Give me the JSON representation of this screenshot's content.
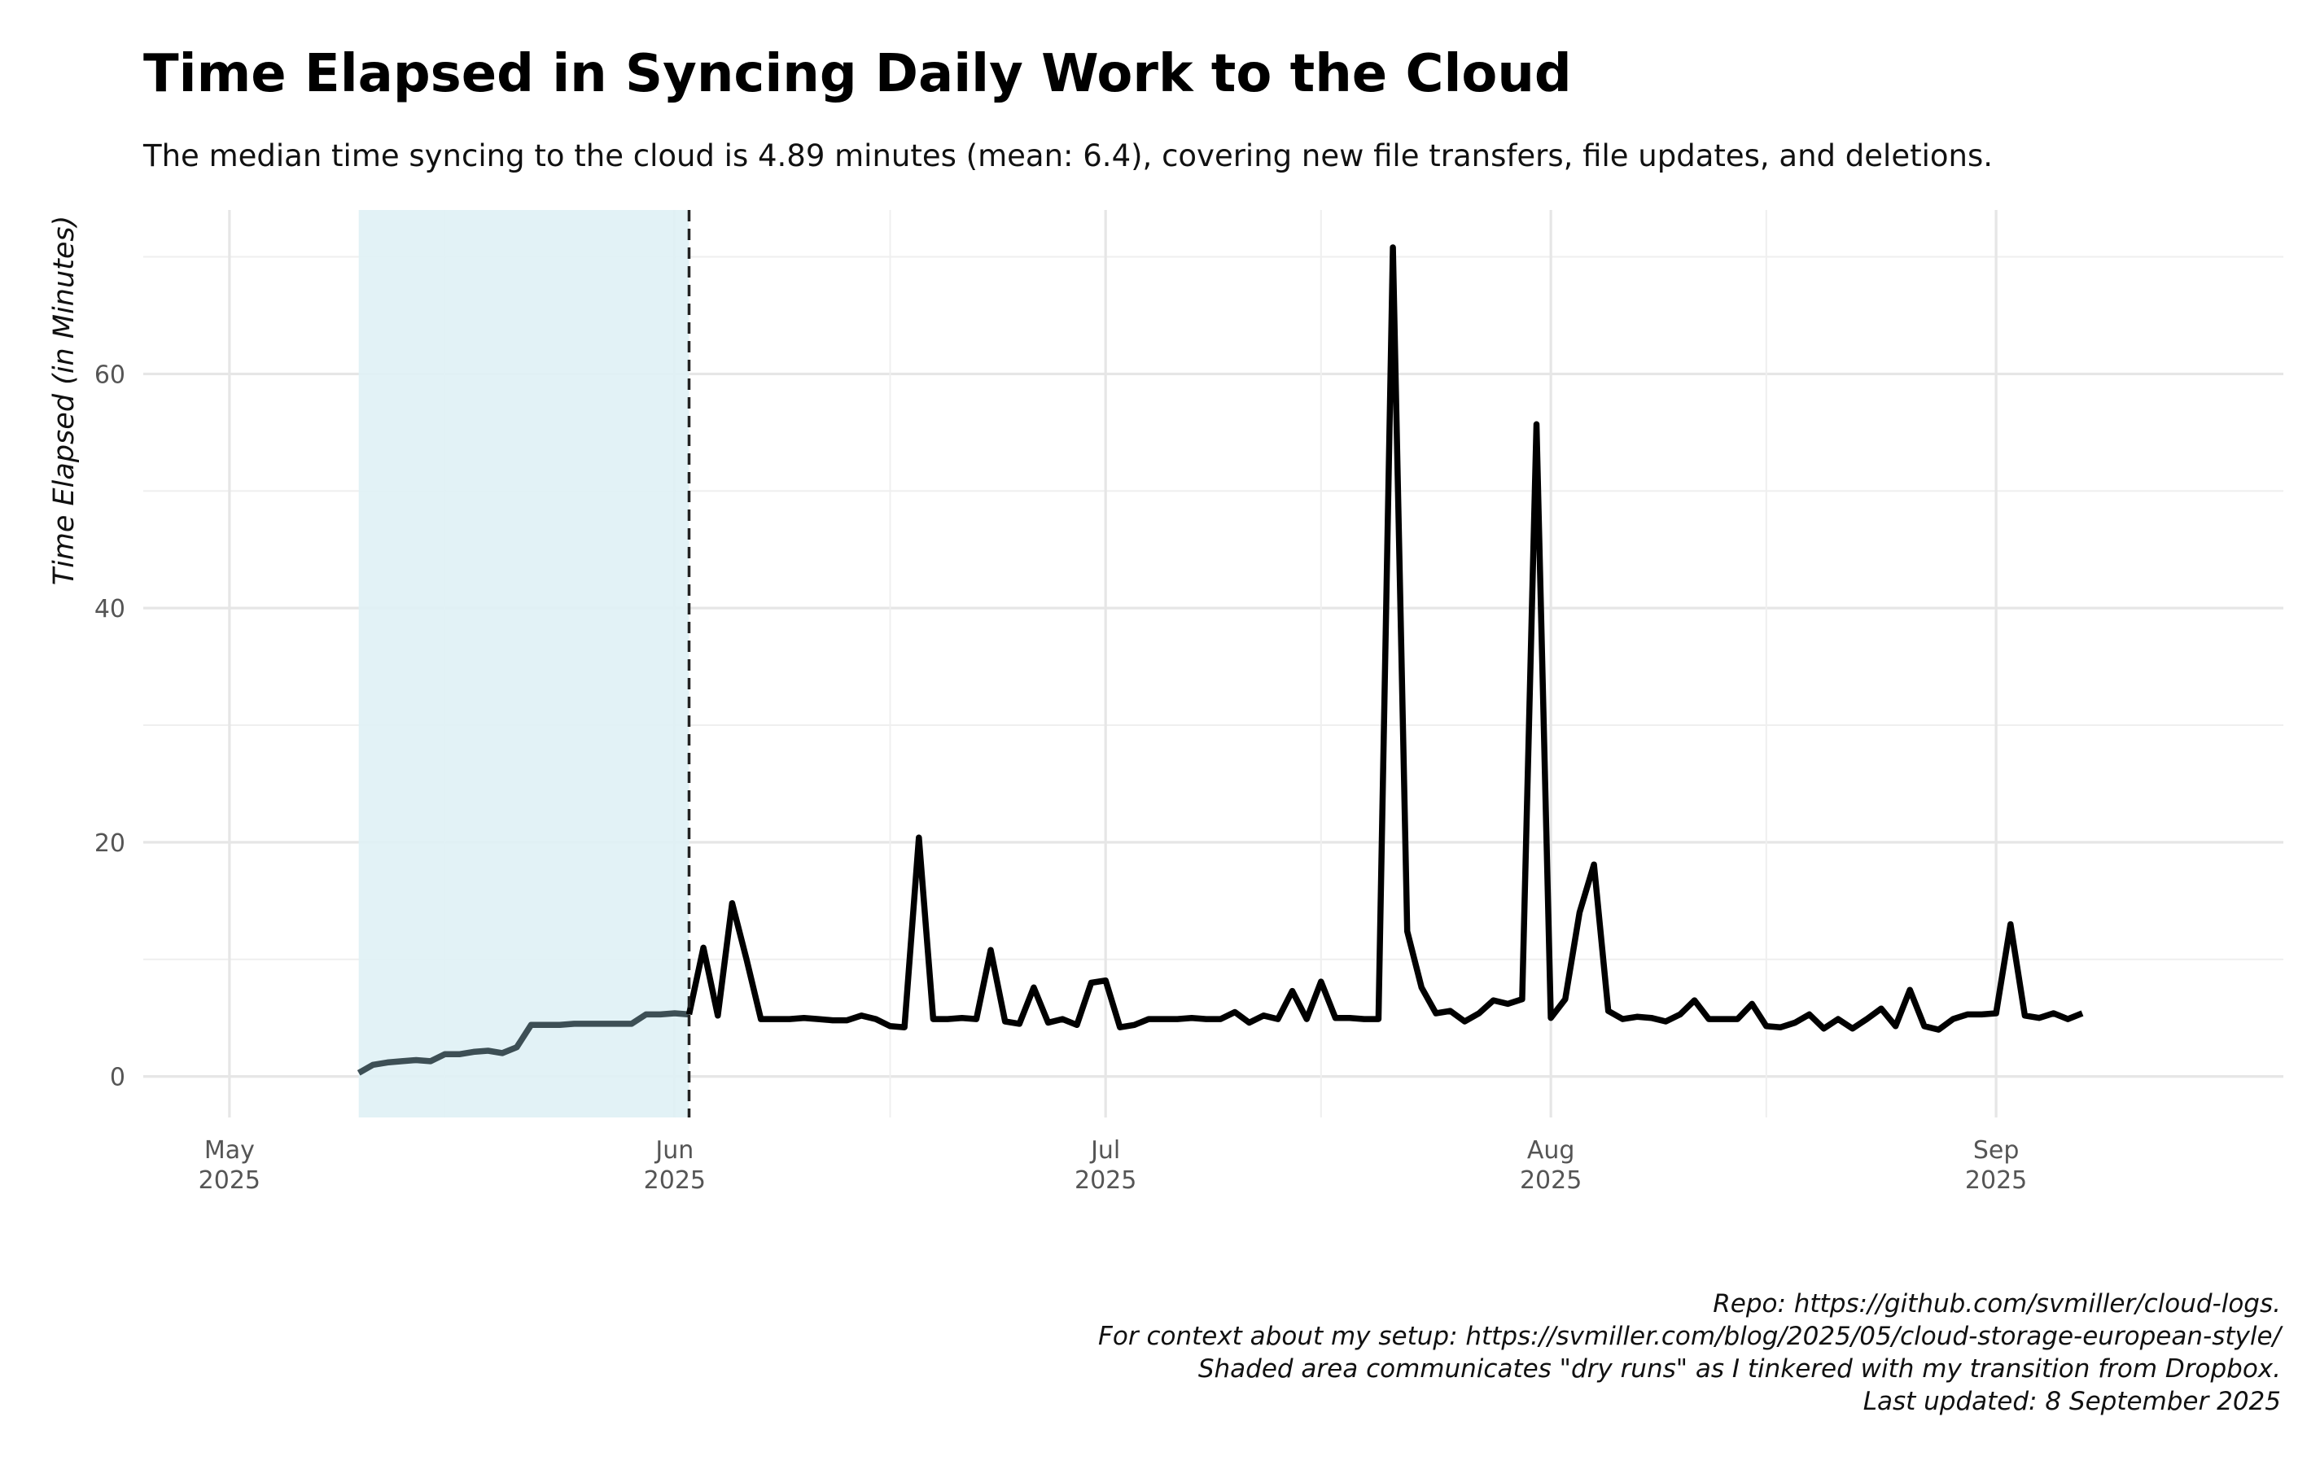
{
  "chart_data": {
    "type": "line",
    "title": "Time Elapsed in Syncing Daily Work to the Cloud",
    "subtitle": "The median time syncing to the cloud is 4.89 minutes (mean: 6.4), covering new file transfers, file updates, and deletions.",
    "xlabel": "",
    "ylabel": "Time Elapsed (in Minutes)",
    "xlim": [
      "2025-04-25",
      "2025-09-21"
    ],
    "ylim": [
      -3.5,
      74
    ],
    "y_ticks": [
      0,
      20,
      40,
      60
    ],
    "x_ticks": [
      {
        "date": "2025-05-01",
        "month": "May",
        "year": "2025"
      },
      {
        "date": "2025-06-01",
        "month": "Jun",
        "year": "2025"
      },
      {
        "date": "2025-07-01",
        "month": "Jul",
        "year": "2025"
      },
      {
        "date": "2025-08-01",
        "month": "Aug",
        "year": "2025"
      },
      {
        "date": "2025-09-01",
        "month": "Sep",
        "year": "2025"
      }
    ],
    "x_minor_ticks": [
      "2025-05-16",
      "2025-06-16",
      "2025-07-16",
      "2025-08-16"
    ],
    "grid": true,
    "shaded_region": {
      "start": "2025-05-10",
      "end": "2025-06-02",
      "color": "#dff1f5"
    },
    "vline": {
      "date": "2025-06-02"
    },
    "colors": {
      "dry_run_line": "#3d4f55",
      "main_line": "#000000"
    },
    "series": [
      {
        "values": [
          {
            "x": "2025-05-10",
            "y": 0.3
          },
          {
            "x": "2025-05-11",
            "y": 1.0
          },
          {
            "x": "2025-05-12",
            "y": 1.2
          },
          {
            "x": "2025-05-13",
            "y": 1.3
          },
          {
            "x": "2025-05-14",
            "y": 1.4
          },
          {
            "x": "2025-05-15",
            "y": 1.3
          },
          {
            "x": "2025-05-16",
            "y": 1.9
          },
          {
            "x": "2025-05-17",
            "y": 1.9
          },
          {
            "x": "2025-05-18",
            "y": 2.1
          },
          {
            "x": "2025-05-19",
            "y": 2.2
          },
          {
            "x": "2025-05-20",
            "y": 2.0
          },
          {
            "x": "2025-05-21",
            "y": 2.5
          },
          {
            "x": "2025-05-22",
            "y": 4.4
          },
          {
            "x": "2025-05-23",
            "y": 4.4
          },
          {
            "x": "2025-05-24",
            "y": 4.4
          },
          {
            "x": "2025-05-25",
            "y": 4.5
          },
          {
            "x": "2025-05-26",
            "y": 4.5
          },
          {
            "x": "2025-05-27",
            "y": 4.5
          },
          {
            "x": "2025-05-28",
            "y": 4.5
          },
          {
            "x": "2025-05-29",
            "y": 4.5
          },
          {
            "x": "2025-05-30",
            "y": 5.3
          },
          {
            "x": "2025-05-31",
            "y": 5.3
          },
          {
            "x": "2025-06-01",
            "y": 5.4
          },
          {
            "x": "2025-06-02",
            "y": 5.3
          }
        ]
      },
      {
        "values": [
          {
            "x": "2025-06-02",
            "y": 5.3
          },
          {
            "x": "2025-06-03",
            "y": 11.0
          },
          {
            "x": "2025-06-04",
            "y": 5.2
          },
          {
            "x": "2025-06-05",
            "y": 14.8
          },
          {
            "x": "2025-06-06",
            "y": 10.0
          },
          {
            "x": "2025-06-07",
            "y": 4.9
          },
          {
            "x": "2025-06-08",
            "y": 4.9
          },
          {
            "x": "2025-06-09",
            "y": 4.9
          },
          {
            "x": "2025-06-10",
            "y": 5.0
          },
          {
            "x": "2025-06-11",
            "y": 4.9
          },
          {
            "x": "2025-06-12",
            "y": 4.8
          },
          {
            "x": "2025-06-13",
            "y": 4.8
          },
          {
            "x": "2025-06-14",
            "y": 5.2
          },
          {
            "x": "2025-06-15",
            "y": 4.9
          },
          {
            "x": "2025-06-16",
            "y": 4.3
          },
          {
            "x": "2025-06-17",
            "y": 4.2
          },
          {
            "x": "2025-06-18",
            "y": 20.4
          },
          {
            "x": "2025-06-19",
            "y": 4.9
          },
          {
            "x": "2025-06-20",
            "y": 4.9
          },
          {
            "x": "2025-06-21",
            "y": 5.0
          },
          {
            "x": "2025-06-22",
            "y": 4.9
          },
          {
            "x": "2025-06-23",
            "y": 10.8
          },
          {
            "x": "2025-06-24",
            "y": 4.7
          },
          {
            "x": "2025-06-25",
            "y": 4.5
          },
          {
            "x": "2025-06-26",
            "y": 7.6
          },
          {
            "x": "2025-06-27",
            "y": 4.6
          },
          {
            "x": "2025-06-28",
            "y": 4.9
          },
          {
            "x": "2025-06-29",
            "y": 4.4
          },
          {
            "x": "2025-06-30",
            "y": 8.0
          },
          {
            "x": "2025-07-01",
            "y": 8.2
          },
          {
            "x": "2025-07-02",
            "y": 4.2
          },
          {
            "x": "2025-07-03",
            "y": 4.4
          },
          {
            "x": "2025-07-04",
            "y": 4.9
          },
          {
            "x": "2025-07-05",
            "y": 4.9
          },
          {
            "x": "2025-07-06",
            "y": 4.9
          },
          {
            "x": "2025-07-07",
            "y": 5.0
          },
          {
            "x": "2025-07-08",
            "y": 4.9
          },
          {
            "x": "2025-07-09",
            "y": 4.9
          },
          {
            "x": "2025-07-10",
            "y": 5.5
          },
          {
            "x": "2025-07-11",
            "y": 4.6
          },
          {
            "x": "2025-07-12",
            "y": 5.2
          },
          {
            "x": "2025-07-13",
            "y": 4.9
          },
          {
            "x": "2025-07-14",
            "y": 7.3
          },
          {
            "x": "2025-07-15",
            "y": 4.9
          },
          {
            "x": "2025-07-16",
            "y": 8.1
          },
          {
            "x": "2025-07-17",
            "y": 5.0
          },
          {
            "x": "2025-07-18",
            "y": 5.0
          },
          {
            "x": "2025-07-19",
            "y": 4.9
          },
          {
            "x": "2025-07-20",
            "y": 4.9
          },
          {
            "x": "2025-07-21",
            "y": 70.8
          },
          {
            "x": "2025-07-22",
            "y": 12.4
          },
          {
            "x": "2025-07-23",
            "y": 7.6
          },
          {
            "x": "2025-07-24",
            "y": 5.4
          },
          {
            "x": "2025-07-25",
            "y": 5.6
          },
          {
            "x": "2025-07-26",
            "y": 4.7
          },
          {
            "x": "2025-07-27",
            "y": 5.4
          },
          {
            "x": "2025-07-28",
            "y": 6.5
          },
          {
            "x": "2025-07-29",
            "y": 6.2
          },
          {
            "x": "2025-07-30",
            "y": 6.6
          },
          {
            "x": "2025-07-31",
            "y": 55.7
          },
          {
            "x": "2025-08-01",
            "y": 5.0
          },
          {
            "x": "2025-08-02",
            "y": 6.6
          },
          {
            "x": "2025-08-03",
            "y": 14.0
          },
          {
            "x": "2025-08-04",
            "y": 18.1
          },
          {
            "x": "2025-08-05",
            "y": 5.6
          },
          {
            "x": "2025-08-06",
            "y": 4.9
          },
          {
            "x": "2025-08-07",
            "y": 5.1
          },
          {
            "x": "2025-08-08",
            "y": 5.0
          },
          {
            "x": "2025-08-09",
            "y": 4.7
          },
          {
            "x": "2025-08-10",
            "y": 5.3
          },
          {
            "x": "2025-08-11",
            "y": 6.5
          },
          {
            "x": "2025-08-12",
            "y": 4.9
          },
          {
            "x": "2025-08-13",
            "y": 4.9
          },
          {
            "x": "2025-08-14",
            "y": 4.9
          },
          {
            "x": "2025-08-15",
            "y": 6.2
          },
          {
            "x": "2025-08-16",
            "y": 4.3
          },
          {
            "x": "2025-08-17",
            "y": 4.2
          },
          {
            "x": "2025-08-18",
            "y": 4.6
          },
          {
            "x": "2025-08-19",
            "y": 5.3
          },
          {
            "x": "2025-08-20",
            "y": 4.1
          },
          {
            "x": "2025-08-21",
            "y": 4.9
          },
          {
            "x": "2025-08-22",
            "y": 4.1
          },
          {
            "x": "2025-08-23",
            "y": 4.9
          },
          {
            "x": "2025-08-24",
            "y": 5.8
          },
          {
            "x": "2025-08-25",
            "y": 4.3
          },
          {
            "x": "2025-08-26",
            "y": 7.4
          },
          {
            "x": "2025-08-27",
            "y": 4.3
          },
          {
            "x": "2025-08-28",
            "y": 4.0
          },
          {
            "x": "2025-08-29",
            "y": 4.9
          },
          {
            "x": "2025-08-30",
            "y": 5.3
          },
          {
            "x": "2025-08-31",
            "y": 5.3
          },
          {
            "x": "2025-09-01",
            "y": 5.4
          },
          {
            "x": "2025-09-02",
            "y": 13.0
          },
          {
            "x": "2025-09-03",
            "y": 5.2
          },
          {
            "x": "2025-09-04",
            "y": 5.0
          },
          {
            "x": "2025-09-05",
            "y": 5.4
          },
          {
            "x": "2025-09-06",
            "y": 4.9
          },
          {
            "x": "2025-09-07",
            "y": 5.4
          }
        ]
      }
    ],
    "caption": [
      "Repo: https://github.com/svmiller/cloud-logs.",
      "For context about my setup: https://svmiller.com/blog/2025/05/cloud-storage-european-style/",
      "Shaded area communicates \"dry runs\" as I tinkered with my transition from Dropbox.",
      "Last updated: 8 September 2025"
    ]
  }
}
